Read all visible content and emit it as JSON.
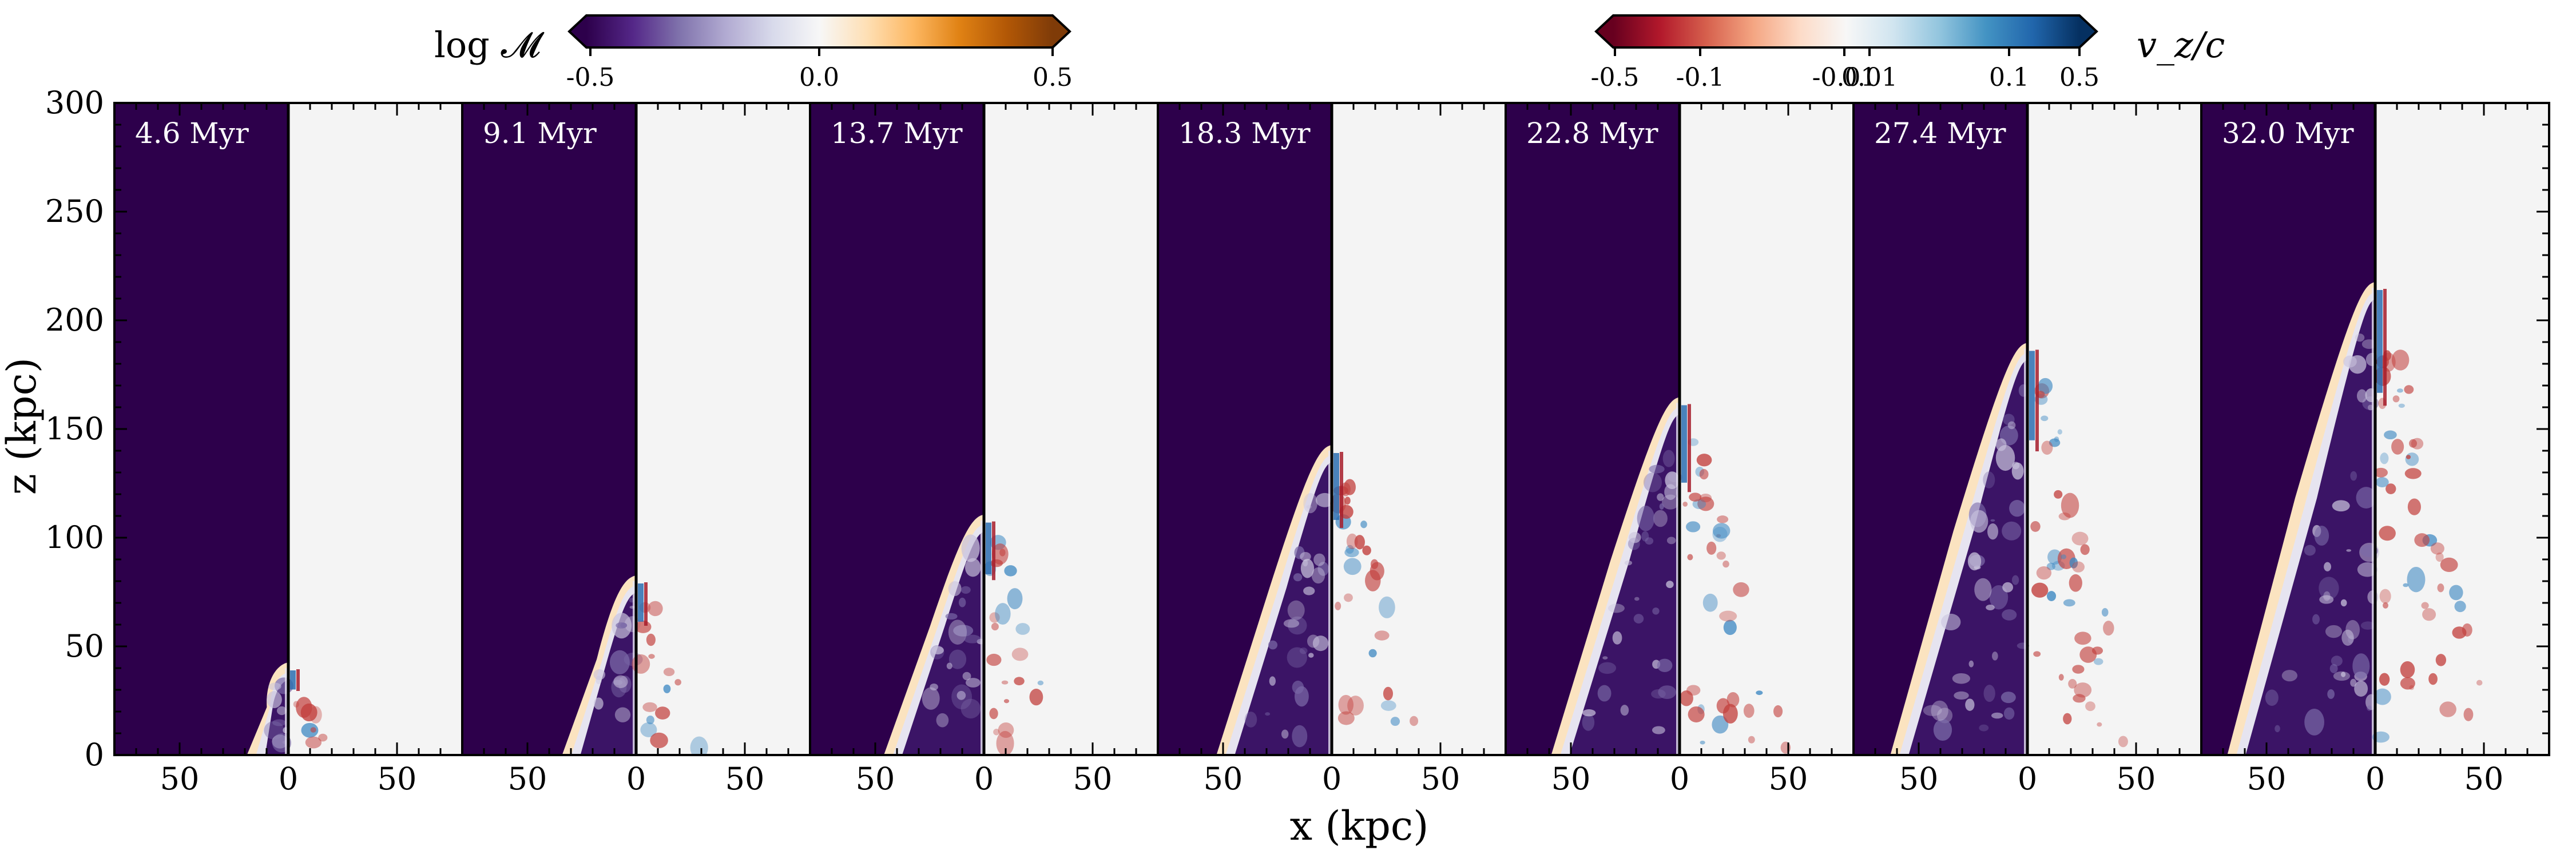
{
  "figure": {
    "ylabel": "z (kpc)",
    "xlabel": "x (kpc)"
  },
  "colorbars": [
    {
      "label": "log 𝓜",
      "ticks": [
        "-0.5",
        "0.0",
        "0.5"
      ],
      "stops": [
        "#2d004b",
        "#542788",
        "#8073ac",
        "#b2abd2",
        "#d8daeb",
        "#f7f7f7",
        "#fee0b6",
        "#fdb863",
        "#e08214",
        "#b35806",
        "#7f3b08"
      ]
    },
    {
      "label": "v_z/c",
      "ticks": [
        "-0.5",
        "-0.1",
        "-0.01",
        "0.01",
        "0.1",
        "0.5"
      ],
      "stops": [
        "#67001f",
        "#b2182b",
        "#d6604d",
        "#f4a582",
        "#fddbc7",
        "#f7f7f7",
        "#d1e5f0",
        "#92c5de",
        "#4393c3",
        "#2166ac",
        "#053061"
      ]
    }
  ],
  "chart_data": {
    "type": "heatmap",
    "title": "",
    "xlabel": "x (kpc)",
    "ylabel": "z (kpc)",
    "xlim": [
      -80,
      80
    ],
    "ylim": [
      0,
      300
    ],
    "x_tick_labels": [
      "50",
      "0",
      "50"
    ],
    "y_tick_labels": [
      "0",
      "50",
      "100",
      "150",
      "200",
      "250",
      "300"
    ],
    "left_half_field": "log 𝓜",
    "right_half_field": "v_z/c",
    "ambient_colors": {
      "mach_background": "#2d004b",
      "velocity_background": "#f4f4f4",
      "shock_edge": "#fbe3c0",
      "inner_light": "#e6e4f0",
      "red": "#c2403d",
      "blue": "#3d88c2"
    },
    "panels": [
      {
        "time": "4.6 Myr",
        "head_z": 40,
        "base_halfwidth": 18
      },
      {
        "time": "9.1 Myr",
        "head_z": 80,
        "base_halfwidth": 33
      },
      {
        "time": "13.7 Myr",
        "head_z": 108,
        "base_halfwidth": 45
      },
      {
        "time": "18.3 Myr",
        "head_z": 140,
        "base_halfwidth": 52
      },
      {
        "time": "22.8 Myr",
        "head_z": 162,
        "base_halfwidth": 58
      },
      {
        "time": "27.4 Myr",
        "head_z": 187,
        "base_halfwidth": 62
      },
      {
        "time": "32.0 Myr",
        "head_z": 215,
        "base_halfwidth": 67
      }
    ]
  }
}
